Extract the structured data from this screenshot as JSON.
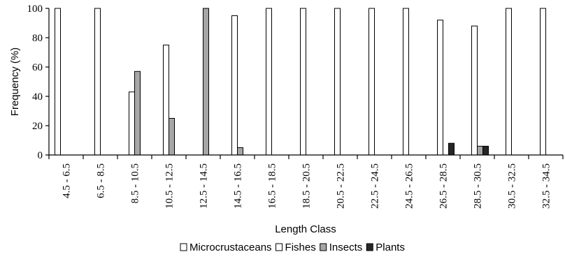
{
  "chart_data": {
    "type": "bar",
    "title": "",
    "xlabel": "Length Class",
    "ylabel": "Frequency (%)",
    "ylim": [
      0,
      100
    ],
    "yticks": [
      0,
      20,
      40,
      60,
      80,
      100
    ],
    "grid": false,
    "legend_position": "bottom",
    "categories": [
      "4.5 - 6.5",
      "6.5 - 8.5",
      "8.5 - 10.5",
      "10.5 - 12.5",
      "12.5 - 14.5",
      "14.5 - 16.5",
      "16.5 - 18.5",
      "18.5 - 20.5",
      "20.5 - 22.5",
      "22.5 - 24.5",
      "24.5 - 26.5",
      "26.5 - 28.5",
      "28.5 - 30.5",
      "30.5 - 32.5",
      "32.5 - 34.5"
    ],
    "series": [
      {
        "name": "Microcrustaceans",
        "color": "#ffffff",
        "values": [
          100,
          0,
          0,
          0,
          0,
          0,
          0,
          0,
          0,
          0,
          0,
          0,
          0,
          0,
          0
        ]
      },
      {
        "name": "Fishes",
        "color": "#ffffff",
        "values": [
          0,
          100,
          43,
          75,
          0,
          95,
          100,
          100,
          100,
          100,
          100,
          92,
          88,
          100,
          100
        ]
      },
      {
        "name": "Insects",
        "color": "#a6a6a6",
        "values": [
          0,
          0,
          57,
          25,
          100,
          5,
          0,
          0,
          0,
          0,
          0,
          0,
          6,
          0,
          0
        ]
      },
      {
        "name": "Plants",
        "color": "#262626",
        "values": [
          0,
          0,
          0,
          0,
          0,
          0,
          0,
          0,
          0,
          0,
          0,
          8,
          6,
          0,
          0
        ]
      }
    ]
  }
}
